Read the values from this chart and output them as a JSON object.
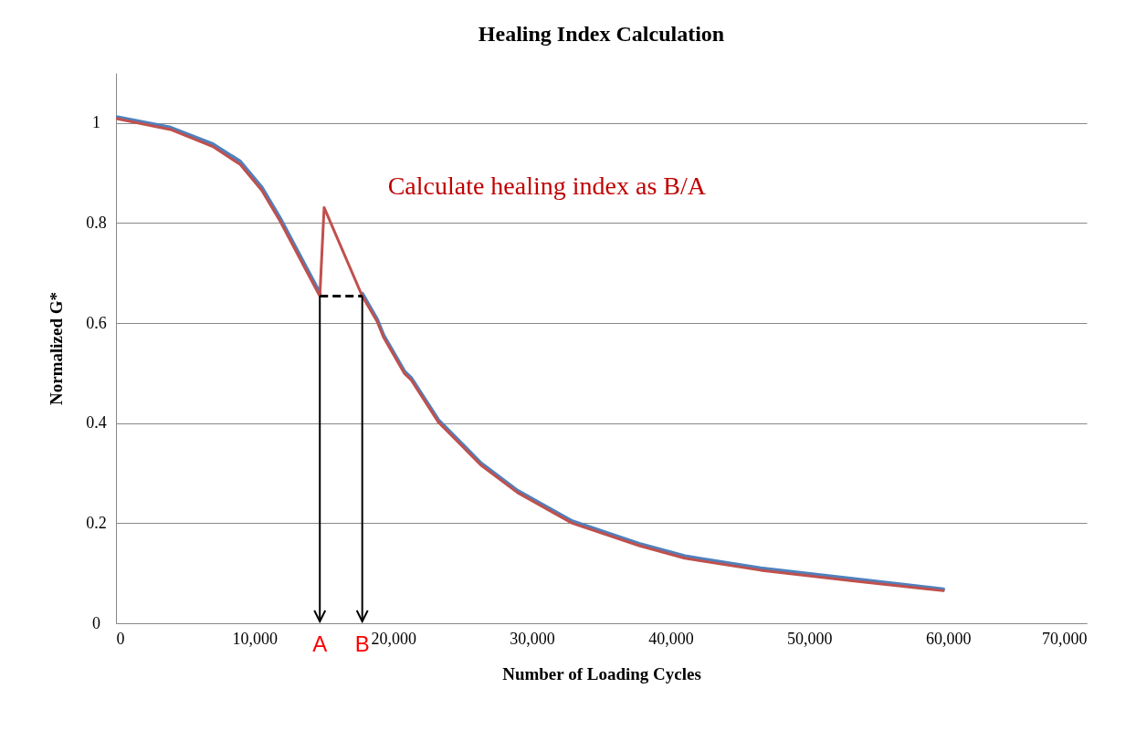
{
  "chart_data": {
    "type": "line",
    "title": "Healing Index Calculation",
    "xlabel": "Number of Loading Cycles",
    "ylabel": "Normalized G*",
    "x": [
      0,
      200,
      3930,
      6980,
      8960,
      10520,
      11830,
      13590,
      14700,
      15010,
      17760,
      18840,
      19290,
      20810,
      21270,
      23250,
      26320,
      28960,
      32900,
      37730,
      41020,
      46490,
      53080,
      59660
    ],
    "series": [
      {
        "color": "#4f81bd",
        "values": [
          1.012,
          1.011,
          0.991,
          0.958,
          0.923,
          0.871,
          0.81,
          0.718,
          0.66,
          null,
          0.659,
          0.607,
          0.576,
          0.503,
          0.491,
          0.406,
          0.32,
          0.265,
          0.204,
          0.159,
          0.134,
          0.11,
          0.089,
          0.068
        ]
      },
      {
        "color": "#c0504d",
        "values": [
          1.009,
          1.008,
          0.987,
          0.953,
          0.917,
          0.865,
          0.804,
          0.712,
          0.654,
          0.831,
          0.654,
          0.603,
          0.572,
          0.499,
          0.487,
          0.402,
          0.316,
          0.261,
          0.2,
          0.155,
          0.13,
          0.106,
          0.085,
          0.065
        ]
      }
    ],
    "xlim": [
      0,
      70000
    ],
    "xticks": [
      0,
      {
        "value": 10000,
        "label": "10,000"
      },
      {
        "value": 20000,
        "label": "20,000"
      },
      {
        "value": 30000,
        "label": "30,000"
      },
      {
        "value": 40000,
        "label": "40,000"
      },
      {
        "value": 50000,
        "label": "50,000"
      },
      {
        "value": 60000,
        "label": "60,000"
      },
      {
        "value": 70000,
        "label": "70,000"
      }
    ],
    "ylim": [
      0,
      1.1
    ],
    "yticks": [
      0,
      0.2,
      0.4,
      0.6,
      0.8,
      1
    ],
    "grid": "y",
    "annotations": [
      "Calculate healing index as B/A",
      {
        "text": "A",
        "x": 14700,
        "y": 0.654
      },
      {
        "text": "B",
        "x": 17760,
        "y": 0.654
      }
    ]
  }
}
